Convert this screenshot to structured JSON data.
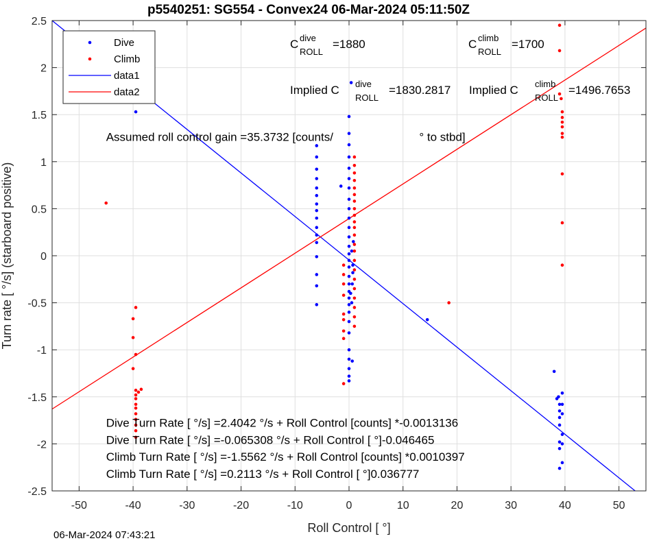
{
  "chart_data": {
    "type": "scatter",
    "title": "p5540251: SG554 - Convex24 06-Mar-2024 05:11:50Z",
    "xlabel": "Roll Control [   °]",
    "ylabel": "Turn rate [   °/s] (starboard positive)",
    "xlim": [
      -55,
      55
    ],
    "ylim": [
      -2.5,
      2.5
    ],
    "xticks": [
      -50,
      -40,
      -30,
      -20,
      -10,
      0,
      10,
      20,
      30,
      40,
      50
    ],
    "xtick_labels": [
      "-50",
      "-40",
      "-30",
      "-20",
      "-10",
      "0",
      "10",
      "20",
      "30",
      "40",
      "50"
    ],
    "yticks": [
      -2.5,
      -2,
      -1.5,
      -1,
      -0.5,
      0,
      0.5,
      1,
      1.5,
      2,
      2.5
    ],
    "ytick_labels": [
      "-2.5",
      "-2",
      "-1.5",
      "-1",
      "-0.5",
      "0",
      "0.5",
      "1",
      "1.5",
      "2",
      "2.5"
    ],
    "grid": true,
    "legend_position": "top-left",
    "series": [
      {
        "name": "Dive",
        "kind": "points",
        "color": "#0000ff",
        "points": [
          [
            -39.5,
            2.1
          ],
          [
            -39.5,
            1.95
          ],
          [
            -39.5,
            1.88
          ],
          [
            -39.5,
            1.7
          ],
          [
            -39.5,
            1.53
          ],
          [
            -6,
            1.17
          ],
          [
            -6,
            1.05
          ],
          [
            -6,
            0.92
          ],
          [
            -6,
            0.82
          ],
          [
            -6,
            0.72
          ],
          [
            -6,
            0.64
          ],
          [
            -6,
            0.55
          ],
          [
            -6,
            0.48
          ],
          [
            -6,
            0.4
          ],
          [
            -6,
            0.3
          ],
          [
            -6,
            0.22
          ],
          [
            -6,
            0.14
          ],
          [
            -6,
            -0.01
          ],
          [
            -6,
            -0.2
          ],
          [
            -6,
            -0.32
          ],
          [
            -6,
            -0.52
          ],
          [
            0,
            1.48
          ],
          [
            0,
            1.3
          ],
          [
            0,
            1.18
          ],
          [
            0,
            1.05
          ],
          [
            0,
            0.93
          ],
          [
            0,
            0.82
          ],
          [
            0,
            0.72
          ],
          [
            0,
            0.6
          ],
          [
            0,
            0.5
          ],
          [
            0,
            0.4
          ],
          [
            0,
            0.3
          ],
          [
            0,
            0.2
          ],
          [
            0,
            0.1
          ],
          [
            0,
            0.02
          ],
          [
            0,
            -0.05
          ],
          [
            0,
            -0.12
          ],
          [
            0,
            -0.22
          ],
          [
            0,
            -0.3
          ],
          [
            0,
            -0.38
          ],
          [
            0,
            -0.45
          ],
          [
            0,
            -0.52
          ],
          [
            0,
            -0.6
          ],
          [
            0,
            -0.7
          ],
          [
            0,
            -0.82
          ],
          [
            0,
            -1.0
          ],
          [
            0,
            -1.1
          ],
          [
            0,
            -1.2
          ],
          [
            0,
            -1.28
          ],
          [
            0,
            -1.33
          ],
          [
            0.4,
            1.84
          ],
          [
            -1.5,
            0.74
          ],
          [
            0.5,
            -0.5
          ],
          [
            0.6,
            -0.3
          ],
          [
            0.7,
            -0.1
          ],
          [
            0.5,
            0.05
          ],
          [
            0.8,
            0.15
          ],
          [
            0.6,
            -1.12
          ],
          [
            0.7,
            -0.18
          ],
          [
            0.3,
            -0.4
          ],
          [
            14.5,
            -0.68
          ],
          [
            38,
            -1.23
          ],
          [
            38.5,
            -1.52
          ],
          [
            38.8,
            -1.5
          ],
          [
            39,
            -1.58
          ],
          [
            39,
            -1.65
          ],
          [
            39,
            -1.72
          ],
          [
            39,
            -1.8
          ],
          [
            39,
            -1.98
          ],
          [
            39,
            -2.05
          ],
          [
            39,
            -2.26
          ],
          [
            39.5,
            -1.46
          ],
          [
            39.5,
            -1.58
          ],
          [
            39.5,
            -1.68
          ],
          [
            39.5,
            -1.9
          ],
          [
            39.5,
            -2.0
          ],
          [
            39.5,
            -2.2
          ]
        ]
      },
      {
        "name": "Climb",
        "kind": "points",
        "color": "#ff0000",
        "points": [
          [
            -45,
            0.56
          ],
          [
            -40,
            -0.67
          ],
          [
            -40,
            -0.87
          ],
          [
            -40,
            -1.2
          ],
          [
            -39.5,
            -0.55
          ],
          [
            -39.5,
            -1.05
          ],
          [
            -39.5,
            -1.43
          ],
          [
            -39.5,
            -1.48
          ],
          [
            -39.5,
            -1.52
          ],
          [
            -39.5,
            -1.58
          ],
          [
            -39.5,
            -1.62
          ],
          [
            -39.5,
            -1.68
          ],
          [
            -39.5,
            -1.74
          ],
          [
            -39.5,
            -1.8
          ],
          [
            -39.5,
            -1.86
          ],
          [
            -39.5,
            -1.93
          ],
          [
            -39,
            -1.45
          ],
          [
            -38.5,
            -1.42
          ],
          [
            -1,
            -1.36
          ],
          [
            -1,
            -0.68
          ],
          [
            -1,
            -0.62
          ],
          [
            -1,
            -0.42
          ],
          [
            -1,
            -0.3
          ],
          [
            -1,
            -0.2
          ],
          [
            -1,
            -0.1
          ],
          [
            -1,
            -0.8
          ],
          [
            -1,
            -0.88
          ],
          [
            1,
            1.05
          ],
          [
            1,
            0.96
          ],
          [
            1,
            0.88
          ],
          [
            1,
            0.8
          ],
          [
            1,
            0.72
          ],
          [
            1,
            0.65
          ],
          [
            1,
            0.58
          ],
          [
            1,
            0.5
          ],
          [
            1,
            0.43
          ],
          [
            1,
            0.36
          ],
          [
            1,
            0.3
          ],
          [
            1,
            0.22
          ],
          [
            1,
            0.12
          ],
          [
            1,
            0.05
          ],
          [
            1,
            -0.05
          ],
          [
            1,
            -0.15
          ],
          [
            1,
            -0.25
          ],
          [
            1,
            -0.35
          ],
          [
            1,
            -0.45
          ],
          [
            1,
            -0.55
          ],
          [
            1,
            -0.65
          ],
          [
            1,
            -0.75
          ],
          [
            18.5,
            -0.5
          ],
          [
            39,
            2.45
          ],
          [
            39,
            2.18
          ],
          [
            39,
            1.72
          ],
          [
            39.3,
            1.67
          ],
          [
            39.5,
            1.53
          ],
          [
            39.5,
            1.47
          ],
          [
            39.5,
            1.42
          ],
          [
            39.5,
            1.37
          ],
          [
            39.5,
            1.3
          ],
          [
            39.5,
            1.26
          ],
          [
            39.5,
            0.87
          ],
          [
            39.5,
            0.35
          ],
          [
            39.5,
            -0.1
          ]
        ]
      },
      {
        "name": "data1",
        "kind": "line",
        "color": "#0000ff",
        "x": [
          -55,
          53
        ],
        "y": [
          2.5,
          -2.5
        ]
      },
      {
        "name": "data2",
        "kind": "line",
        "color": "#ff0000",
        "x": [
          -55,
          55
        ],
        "y": [
          -1.63,
          2.42
        ]
      }
    ],
    "annotations": [
      {
        "text": "Assumed roll control gain =35.3732 [counts/",
        "x": -45,
        "y": 1.22
      },
      {
        "text": "° to stbd]",
        "x": 13,
        "y": 1.22
      },
      {
        "text": "Dive Turn Rate [    °/s] =2.4042     °/s + Roll Control [counts] *-0.0013136",
        "x": -45,
        "y": -1.82
      },
      {
        "text": "Dive Turn Rate [    °/s] =-0.065308     °/s + Roll Control [      °]-0.046465",
        "x": -45,
        "y": -2.0
      },
      {
        "text": "Climb Turn Rate [    °/s] =-1.5562     °/s + Roll Control [counts] *0.0010397",
        "x": -45,
        "y": -2.18
      },
      {
        "text": "Climb Turn Rate [    °/s] =0.2113     °/s + Roll Control [     °]0.036777",
        "x": -45,
        "y": -2.36
      }
    ],
    "coef_labels": {
      "c_main": "C",
      "dive_sup": "dive",
      "roll_sub": "ROLL",
      "dive_val": "=1880",
      "climb_sup": "climb",
      "climb_val": "=1700",
      "implied_prefix": "Implied C",
      "implied_dive_val": "=1830.2817",
      "implied_climb_val": "=1496.7653"
    }
  },
  "footer": {
    "timestamp": "06-Mar-2024 07:43:21"
  }
}
